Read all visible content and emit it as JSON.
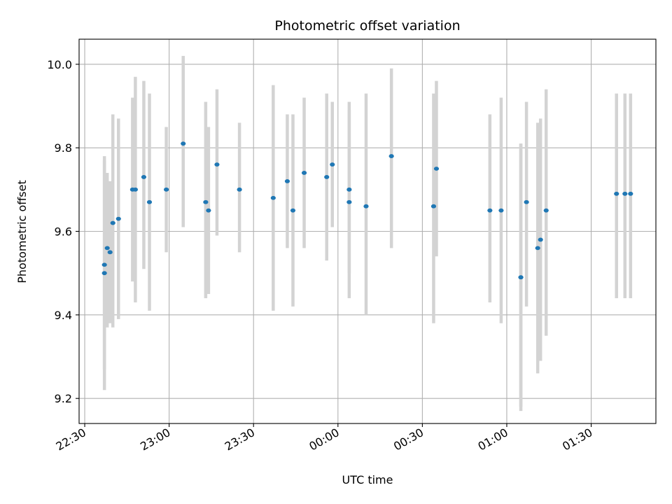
{
  "chart_data": {
    "type": "scatter",
    "title": "Photometric offset variation",
    "xlabel": "UTC time",
    "ylabel": "Photometric offset",
    "x_ticks": [
      {
        "time": "22:30",
        "minutes": -90
      },
      {
        "time": "23:00",
        "minutes": -60
      },
      {
        "time": "23:30",
        "minutes": -30
      },
      {
        "time": "00:00",
        "minutes": 0
      },
      {
        "time": "00:30",
        "minutes": 30
      },
      {
        "time": "01:00",
        "minutes": 60
      },
      {
        "time": "01:30",
        "minutes": 90
      }
    ],
    "y_ticks": [
      9.2,
      9.4,
      9.6,
      9.8,
      10.0
    ],
    "xlim": [
      "22:28",
      "01:53"
    ],
    "ylim": [
      9.14,
      10.06
    ],
    "grid": true,
    "marker_color": "#1f77b4",
    "errorbar_color": "#d3d3d3",
    "points": [
      {
        "t": "22:37",
        "y": 9.5,
        "lo": 9.22,
        "hi": 9.78
      },
      {
        "t": "22:37",
        "y": 9.52,
        "lo": 9.27,
        "hi": 9.77
      },
      {
        "t": "22:38",
        "y": 9.56,
        "lo": 9.37,
        "hi": 9.74
      },
      {
        "t": "22:39",
        "y": 9.55,
        "lo": 9.38,
        "hi": 9.72
      },
      {
        "t": "22:40",
        "y": 9.62,
        "lo": 9.37,
        "hi": 9.88
      },
      {
        "t": "22:42",
        "y": 9.63,
        "lo": 9.39,
        "hi": 9.87
      },
      {
        "t": "22:47",
        "y": 9.7,
        "lo": 9.48,
        "hi": 9.92
      },
      {
        "t": "22:48",
        "y": 9.7,
        "lo": 9.43,
        "hi": 9.97
      },
      {
        "t": "22:51",
        "y": 9.73,
        "lo": 9.51,
        "hi": 9.96
      },
      {
        "t": "22:53",
        "y": 9.67,
        "lo": 9.41,
        "hi": 9.93
      },
      {
        "t": "22:59",
        "y": 9.7,
        "lo": 9.55,
        "hi": 9.85
      },
      {
        "t": "23:05",
        "y": 9.81,
        "lo": 9.61,
        "hi": 10.02
      },
      {
        "t": "23:13",
        "y": 9.67,
        "lo": 9.44,
        "hi": 9.91
      },
      {
        "t": "23:14",
        "y": 9.65,
        "lo": 9.45,
        "hi": 9.85
      },
      {
        "t": "23:17",
        "y": 9.76,
        "lo": 9.59,
        "hi": 9.94
      },
      {
        "t": "23:25",
        "y": 9.7,
        "lo": 9.55,
        "hi": 9.86
      },
      {
        "t": "23:37",
        "y": 9.68,
        "lo": 9.41,
        "hi": 9.95
      },
      {
        "t": "23:42",
        "y": 9.72,
        "lo": 9.56,
        "hi": 9.88
      },
      {
        "t": "23:44",
        "y": 9.65,
        "lo": 9.42,
        "hi": 9.88
      },
      {
        "t": "23:48",
        "y": 9.74,
        "lo": 9.56,
        "hi": 9.92
      },
      {
        "t": "23:56",
        "y": 9.73,
        "lo": 9.53,
        "hi": 9.93
      },
      {
        "t": "23:58",
        "y": 9.76,
        "lo": 9.61,
        "hi": 9.91
      },
      {
        "t": "00:04",
        "y": 9.7,
        "lo": 9.5,
        "hi": 9.89
      },
      {
        "t": "00:04",
        "y": 9.67,
        "lo": 9.44,
        "hi": 9.91
      },
      {
        "t": "00:10",
        "y": 9.66,
        "lo": 9.4,
        "hi": 9.93
      },
      {
        "t": "00:19",
        "y": 9.78,
        "lo": 9.56,
        "hi": 9.99
      },
      {
        "t": "00:34",
        "y": 9.66,
        "lo": 9.38,
        "hi": 9.93
      },
      {
        "t": "00:35",
        "y": 9.75,
        "lo": 9.54,
        "hi": 9.96
      },
      {
        "t": "00:54",
        "y": 9.65,
        "lo": 9.43,
        "hi": 9.88
      },
      {
        "t": "00:58",
        "y": 9.65,
        "lo": 9.38,
        "hi": 9.92
      },
      {
        "t": "01:05",
        "y": 9.49,
        "lo": 9.17,
        "hi": 9.81
      },
      {
        "t": "01:05",
        "y": 9.49,
        "lo": 9.18,
        "hi": 9.81
      },
      {
        "t": "01:07",
        "y": 9.67,
        "lo": 9.42,
        "hi": 9.91
      },
      {
        "t": "01:11",
        "y": 9.56,
        "lo": 9.26,
        "hi": 9.86
      },
      {
        "t": "01:12",
        "y": 9.58,
        "lo": 9.29,
        "hi": 9.87
      },
      {
        "t": "01:14",
        "y": 9.65,
        "lo": 9.35,
        "hi": 9.94
      },
      {
        "t": "01:39",
        "y": 9.69,
        "lo": 9.44,
        "hi": 9.93
      },
      {
        "t": "01:42",
        "y": 9.69,
        "lo": 9.44,
        "hi": 9.93
      },
      {
        "t": "01:44",
        "y": 9.69,
        "lo": 9.44,
        "hi": 9.93
      }
    ]
  }
}
